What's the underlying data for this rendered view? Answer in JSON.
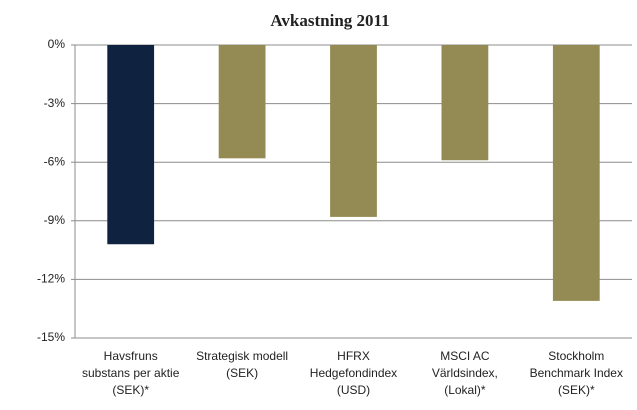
{
  "chart_data": {
    "type": "bar",
    "title": "Avkastning 2011",
    "categories": [
      "Havsfruns\nsubstans per aktie\n(SEK)*",
      "Strategisk modell\n(SEK)",
      "HFRX\nHedgefondindex\n(USD)",
      "MSCI AC\nVärldsindex,\n(Lokal)*",
      "Stockholm\nBenchmark Index\n(SEK)*"
    ],
    "values": [
      -10.2,
      -5.8,
      -8.8,
      -5.9,
      -13.1
    ],
    "colors": [
      "#0f2340",
      "#948a54",
      "#948a54",
      "#948a54",
      "#948a54"
    ],
    "ylim": [
      -15,
      0
    ],
    "yticks": [
      {
        "value": 0,
        "label": "0%"
      },
      {
        "value": -3,
        "label": "-3%"
      },
      {
        "value": -6,
        "label": "-6%"
      },
      {
        "value": -9,
        "label": "-9%"
      },
      {
        "value": -12,
        "label": "-12%"
      },
      {
        "value": -15,
        "label": "-15%"
      }
    ],
    "grid": true
  }
}
